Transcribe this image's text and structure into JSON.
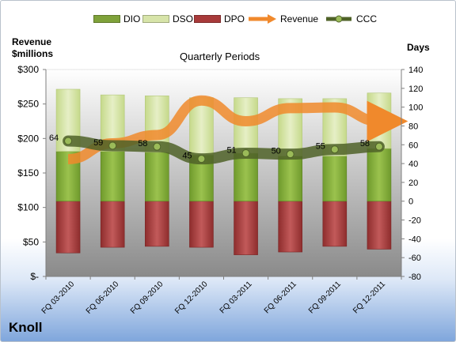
{
  "chart_data": {
    "type": "bar",
    "title": "Quarterly Periods",
    "company": "Knoll",
    "left_axis_label": "Revenue\n$millions",
    "right_axis_label": "Days",
    "categories": [
      "FQ 03-2010",
      "FQ 06-2010",
      "FQ 09-2010",
      "FQ 12-2010",
      "FQ 03-2011",
      "FQ 06-2011",
      "FQ 09-2011",
      "FQ 12-2011"
    ],
    "left_axis": {
      "min": 0,
      "max": 300,
      "ticks": [
        "$-",
        "$50",
        "$100",
        "$150",
        "$200",
        "$250",
        "$300"
      ]
    },
    "right_axis": {
      "min": -80,
      "max": 140,
      "ticks": [
        "-80",
        "-60",
        "-40",
        "-20",
        "0",
        "20",
        "40",
        "60",
        "80",
        "100",
        "120",
        "140"
      ]
    },
    "series": [
      {
        "name": "DIO",
        "axis": "right",
        "kind": "stacked-bar",
        "values": [
          53,
          53,
          52,
          49,
          51,
          48,
          48,
          56
        ]
      },
      {
        "name": "DSO",
        "axis": "right",
        "kind": "stacked-bar",
        "values": [
          66,
          60,
          60,
          61,
          59,
          61,
          61,
          59
        ]
      },
      {
        "name": "DPO",
        "axis": "right",
        "kind": "stacked-bar",
        "values": [
          -55,
          -49,
          -48,
          -49,
          -57,
          -54,
          -48,
          -51
        ]
      },
      {
        "name": "Revenue",
        "axis": "left",
        "kind": "line",
        "values": [
          170,
          193,
          205,
          255,
          225,
          244,
          245,
          225
        ]
      },
      {
        "name": "CCC",
        "axis": "right",
        "kind": "line",
        "values": [
          64,
          59,
          58,
          45,
          51,
          50,
          55,
          58
        ]
      }
    ],
    "data_labels": [
      "64",
      "59",
      "58",
      "45",
      "51",
      "50",
      "55",
      "58"
    ],
    "colors": {
      "DIO": "#7fa23a",
      "DSO": "#d7e4a9",
      "DPO": "#a83a3a",
      "Revenue": "#f0892c",
      "CCC": "#4f6228",
      "plot_bg_top": "#ffffff",
      "plot_bg_bottom": "#8f8f8f"
    },
    "legend": {
      "position": "top"
    },
    "grid": false
  }
}
